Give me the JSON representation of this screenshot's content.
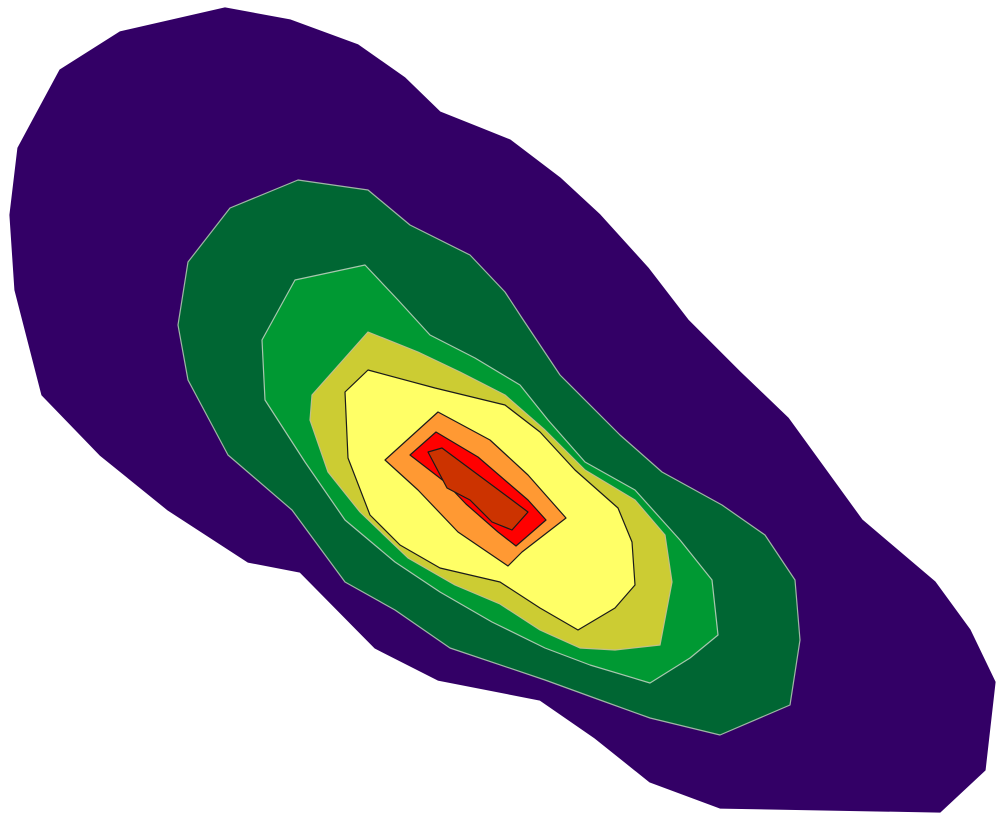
{
  "chart_data": {
    "type": "contour",
    "title": "",
    "xlabel": "",
    "ylabel": "",
    "legend": "none",
    "axes": "hidden",
    "grid": false,
    "levels": [
      {
        "level": 1,
        "fill": "#330066",
        "stroke": "#330066"
      },
      {
        "level": 2,
        "fill": "#006633",
        "stroke": "#9fb6a6"
      },
      {
        "level": 3,
        "fill": "#009933",
        "stroke": "#a7c7ae"
      },
      {
        "level": 4,
        "fill": "#cccc33",
        "stroke": "#c0c08a"
      },
      {
        "level": 5,
        "fill": "#ffff66",
        "stroke": "#1a1a1a"
      },
      {
        "level": 6,
        "fill": "#ff9933",
        "stroke": "#1a1a1a"
      },
      {
        "level": 7,
        "fill": "#ff0000",
        "stroke": "#1a1a1a"
      },
      {
        "level": 8,
        "fill": "#cc3300",
        "stroke": "#1a1a1a"
      }
    ]
  }
}
